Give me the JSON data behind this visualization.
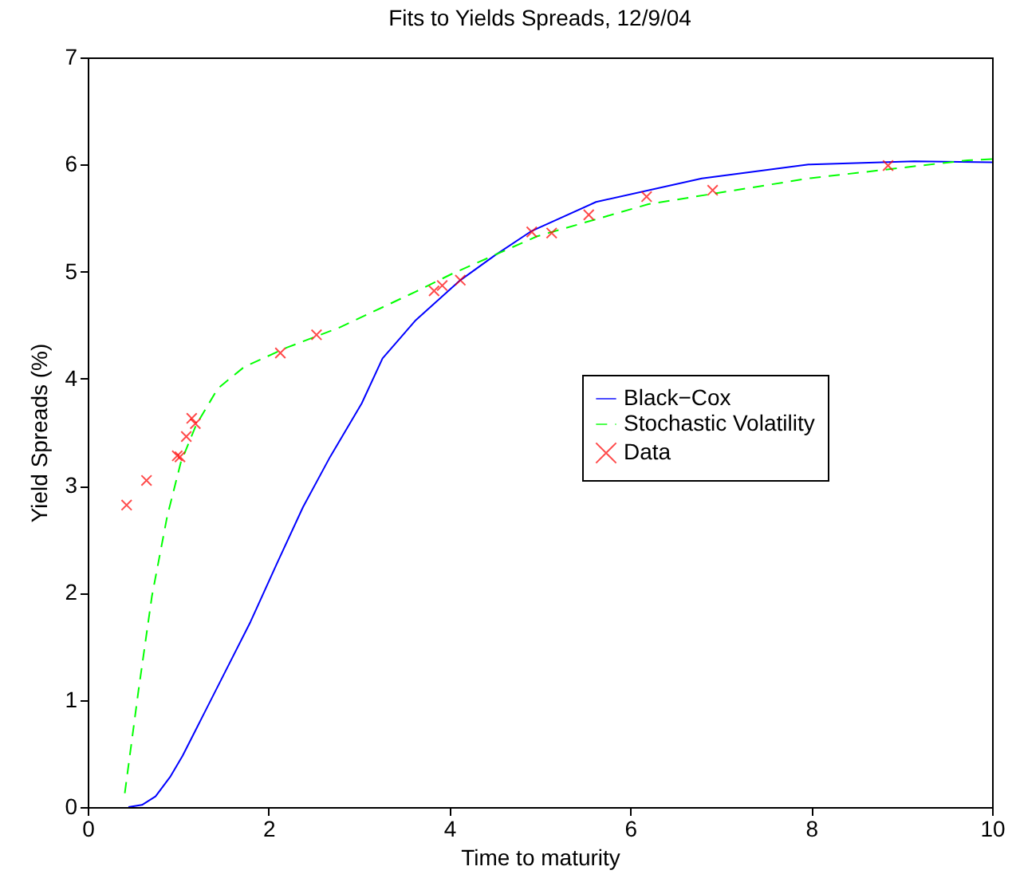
{
  "chart_data": {
    "type": "line",
    "title": "Fits to Yields Spreads, 12/9/04",
    "xlabel": "Time to maturity",
    "ylabel": "Yield Spreads (%)",
    "xlim": [
      0,
      10
    ],
    "xticks": [
      0,
      2,
      4,
      6,
      8,
      10
    ],
    "ylim": [
      0,
      7
    ],
    "yticks": [
      0,
      1,
      2,
      3,
      4,
      5,
      6,
      7
    ],
    "grid": false,
    "legend": "right",
    "series": [
      {
        "name": "Black−Cox",
        "type": "line",
        "color": "#0000ff",
        "line_style": "solid",
        "x": [
          0.45,
          0.6,
          0.75,
          0.91,
          1.05,
          1.2,
          1.5,
          1.8,
          2.09,
          2.38,
          2.68,
          3.03,
          3.26,
          3.62,
          4.12,
          4.5,
          4.91,
          5.62,
          6.79,
          7.97,
          9.14,
          10
        ],
        "values": [
          0,
          0.02,
          0.1,
          0.28,
          0.48,
          0.73,
          1.23,
          1.73,
          2.27,
          2.8,
          3.27,
          3.77,
          4.19,
          4.54,
          4.92,
          5.15,
          5.38,
          5.65,
          5.87,
          6.0,
          6.03,
          6.02
        ]
      },
      {
        "name": "Stochastic Volatility",
        "type": "line",
        "color": "#00ff00",
        "line_style": "dashed",
        "x": [
          0.41,
          0.56,
          0.71,
          0.88,
          1.03,
          1.2,
          1.44,
          1.73,
          2.2,
          2.79,
          3.62,
          4.03,
          4.97,
          6.2,
          7.97,
          9.73,
          10
        ],
        "values": [
          0.13,
          1.08,
          1.97,
          2.72,
          3.22,
          3.57,
          3.91,
          4.11,
          4.29,
          4.48,
          4.81,
          4.98,
          5.33,
          5.63,
          5.87,
          6.04,
          6.05
        ]
      },
      {
        "name": "Data",
        "type": "scatter",
        "color": "#ff0000",
        "marker": "cross",
        "x": [
          0.43,
          0.65,
          0.99,
          1.02,
          1.09,
          1.15,
          1.19,
          2.13,
          2.53,
          3.83,
          3.92,
          4.12,
          4.91,
          5.13,
          5.54,
          6.18,
          6.91,
          8.85
        ],
        "values": [
          2.82,
          3.05,
          3.28,
          3.27,
          3.46,
          3.63,
          3.58,
          4.24,
          4.41,
          4.82,
          4.87,
          4.92,
          5.37,
          5.36,
          5.53,
          5.7,
          5.76,
          5.99
        ]
      }
    ]
  }
}
